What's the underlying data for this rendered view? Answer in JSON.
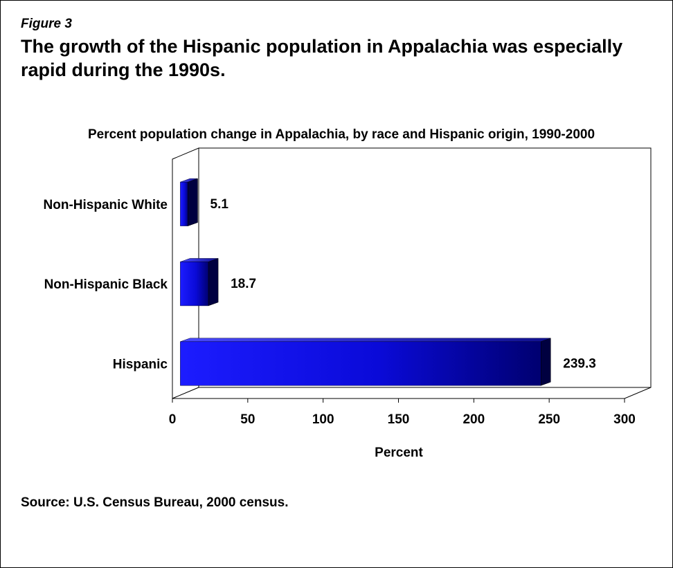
{
  "figure_label": "Figure 3",
  "headline": "The growth of the Hispanic population in Appalachia was especially rapid during the 1990s.",
  "source": "Source: U.S. Census Bureau, 2000 census.",
  "colors": {
    "bar_light": "#1a1aff",
    "bar_dark": "#000033",
    "bar_mid": "#00008b",
    "axis": "#000000"
  },
  "chart_data": {
    "type": "bar",
    "orientation": "horizontal",
    "style": "3d",
    "title": "Percent population change in Appalachia, by race and Hispanic origin, 1990-2000",
    "xlabel": "Percent",
    "ylabel": "",
    "categories": [
      "Non-Hispanic White",
      "Non-Hispanic Black",
      "Hispanic"
    ],
    "values": [
      5.1,
      18.7,
      239.3
    ],
    "data_labels": [
      "5.1",
      "18.7",
      "239.3"
    ],
    "xlim": [
      0,
      300
    ],
    "xticks": [
      "0",
      "50",
      "100",
      "150",
      "200",
      "250",
      "300"
    ],
    "grid": false,
    "legend": "none"
  }
}
